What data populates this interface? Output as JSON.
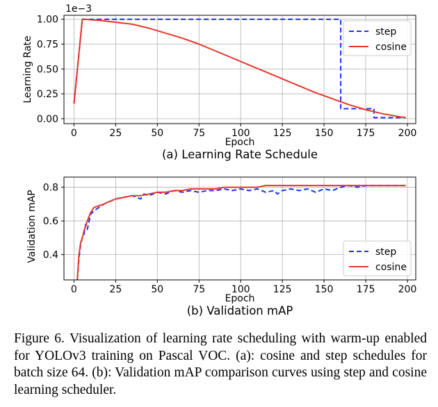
{
  "chart_data": [
    {
      "type": "line",
      "subtitle": "(a) Learning Rate Schedule",
      "xlabel": "Epoch",
      "ylabel": "Learning Rate",
      "y_multiplier": "1e−3",
      "xlim": [
        -6,
        205
      ],
      "ylim": [
        -0.05,
        1.04
      ],
      "x_ticks": [
        0,
        25,
        50,
        75,
        100,
        125,
        150,
        175,
        200
      ],
      "y_ticks": [
        0.0,
        0.25,
        0.5,
        0.75,
        1.0
      ],
      "x_tick_labels": [
        "0",
        "25",
        "50",
        "75",
        "100",
        "125",
        "150",
        "175",
        "200"
      ],
      "y_tick_labels": [
        "0.00",
        "0.25",
        "0.50",
        "0.75",
        "1.00"
      ],
      "grid": true,
      "legend_position": "top-right",
      "series": [
        {
          "name": "step",
          "color": "#1f2ff0",
          "dash": true,
          "x": [
            0,
            5,
            160,
            160,
            180,
            180,
            199
          ],
          "y": [
            0.15,
            1.0,
            1.0,
            0.1,
            0.1,
            0.01,
            0.01
          ]
        },
        {
          "name": "cosine",
          "color": "#e8352b",
          "dash": false,
          "x": [
            0,
            1,
            2,
            3,
            4,
            5,
            15,
            25,
            35,
            45,
            55,
            65,
            75,
            85,
            95,
            105,
            115,
            125,
            135,
            145,
            155,
            165,
            175,
            185,
            195,
            199
          ],
          "y": [
            0.15,
            0.32,
            0.49,
            0.66,
            0.83,
            1.0,
            0.99,
            0.97,
            0.95,
            0.91,
            0.86,
            0.81,
            0.75,
            0.68,
            0.61,
            0.54,
            0.47,
            0.4,
            0.33,
            0.26,
            0.2,
            0.14,
            0.09,
            0.05,
            0.02,
            0.01
          ]
        }
      ]
    },
    {
      "type": "line",
      "subtitle": "(b) Validation mAP",
      "xlabel": "Epoch",
      "ylabel": "Validation mAP",
      "xlim": [
        -6,
        205
      ],
      "ylim": [
        0.25,
        0.86
      ],
      "x_ticks": [
        0,
        25,
        50,
        75,
        100,
        125,
        150,
        175,
        200
      ],
      "y_ticks": [
        0.4,
        0.6,
        0.8
      ],
      "x_tick_labels": [
        "0",
        "25",
        "50",
        "75",
        "100",
        "125",
        "150",
        "175",
        "200"
      ],
      "y_tick_labels": [
        "0.4",
        "0.6",
        "0.8"
      ],
      "grid": true,
      "legend_position": "lower-right",
      "series": [
        {
          "name": "step",
          "color": "#1f2ff0",
          "dash": true,
          "x": [
            2,
            3,
            4,
            5,
            6,
            7,
            8,
            10,
            12,
            15,
            18,
            20,
            25,
            30,
            35,
            40,
            42,
            45,
            50,
            55,
            60,
            65,
            70,
            75,
            80,
            85,
            90,
            95,
            100,
            105,
            110,
            115,
            120,
            122,
            125,
            130,
            135,
            140,
            145,
            150,
            155,
            160,
            165,
            170,
            175,
            180,
            185,
            190,
            195,
            199
          ],
          "y": [
            0.25,
            0.38,
            0.46,
            0.5,
            0.52,
            0.58,
            0.55,
            0.64,
            0.66,
            0.68,
            0.7,
            0.71,
            0.73,
            0.74,
            0.75,
            0.73,
            0.76,
            0.75,
            0.77,
            0.76,
            0.78,
            0.77,
            0.78,
            0.77,
            0.78,
            0.78,
            0.79,
            0.78,
            0.79,
            0.78,
            0.79,
            0.77,
            0.78,
            0.76,
            0.78,
            0.79,
            0.78,
            0.79,
            0.77,
            0.79,
            0.78,
            0.8,
            0.81,
            0.8,
            0.81,
            0.81,
            0.81,
            0.81,
            0.81,
            0.81
          ]
        },
        {
          "name": "cosine",
          "color": "#e8352b",
          "dash": false,
          "x": [
            2,
            3,
            4,
            5,
            6,
            7,
            8,
            10,
            12,
            15,
            18,
            20,
            25,
            30,
            35,
            40,
            45,
            50,
            55,
            60,
            65,
            70,
            75,
            80,
            85,
            90,
            95,
            100,
            105,
            110,
            115,
            120,
            125,
            130,
            135,
            140,
            145,
            150,
            155,
            160,
            165,
            170,
            175,
            180,
            185,
            190,
            195,
            199
          ],
          "y": [
            0.25,
            0.4,
            0.47,
            0.5,
            0.54,
            0.57,
            0.6,
            0.65,
            0.68,
            0.69,
            0.7,
            0.71,
            0.73,
            0.74,
            0.75,
            0.75,
            0.76,
            0.77,
            0.77,
            0.78,
            0.78,
            0.79,
            0.79,
            0.79,
            0.79,
            0.8,
            0.8,
            0.8,
            0.8,
            0.8,
            0.81,
            0.81,
            0.81,
            0.81,
            0.81,
            0.81,
            0.81,
            0.81,
            0.81,
            0.81,
            0.81,
            0.81,
            0.81,
            0.81,
            0.81,
            0.81,
            0.81,
            0.81
          ]
        }
      ]
    }
  ],
  "caption": "Figure 6. Visualization of learning rate scheduling with warm-up enabled for YOLOv3 training on Pascal VOC. (a): cosine and step schedules for batch size 64. (b): Validation mAP comparison curves using step and cosine learning scheduler."
}
